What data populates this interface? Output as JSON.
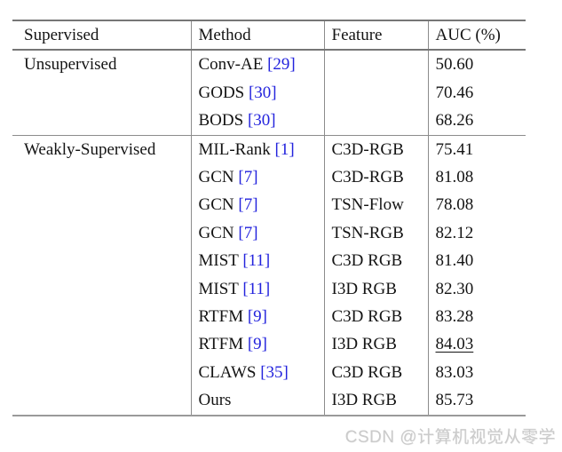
{
  "table": {
    "headers": [
      "Supervised",
      "Method",
      "Feature",
      "AUC (%)"
    ],
    "sections": [
      {
        "supervision": "Unsupervised",
        "rows": [
          {
            "method": "Conv-AE",
            "cite": "[29]",
            "feature": "",
            "auc": "50.60"
          },
          {
            "method": "GODS",
            "cite": "[30]",
            "feature": "",
            "auc": "70.46"
          },
          {
            "method": "BODS",
            "cite": "[30]",
            "feature": "",
            "auc": "68.26"
          }
        ]
      },
      {
        "supervision": "Weakly-Supervised",
        "rows": [
          {
            "method": "MIL-Rank",
            "cite": "[1]",
            "feature": "C3D-RGB",
            "auc": "75.41"
          },
          {
            "method": "GCN",
            "cite": "[7]",
            "feature": "C3D-RGB",
            "auc": "81.08"
          },
          {
            "method": "GCN",
            "cite": "[7]",
            "feature": "TSN-Flow",
            "auc": "78.08"
          },
          {
            "method": "GCN",
            "cite": "[7]",
            "feature": "TSN-RGB",
            "auc": "82.12"
          },
          {
            "method": "MIST",
            "cite": "[11]",
            "feature": "C3D RGB",
            "auc": "81.40"
          },
          {
            "method": "MIST",
            "cite": "[11]",
            "feature": "I3D RGB",
            "auc": "82.30"
          },
          {
            "method": "RTFM",
            "cite": "[9]",
            "feature": "C3D RGB",
            "auc": "83.28"
          },
          {
            "method": "RTFM",
            "cite": "[9]",
            "feature": "I3D RGB",
            "auc": "84.03",
            "underline": true
          },
          {
            "method": "CLAWS",
            "cite": "[35]",
            "feature": "C3D RGB",
            "auc": "83.03"
          },
          {
            "method": "Ours",
            "cite": "",
            "feature": "I3D RGB",
            "auc": "85.73",
            "bold": true
          }
        ]
      }
    ]
  },
  "watermark": {
    "text": "CSDN @计算机视觉从零学"
  },
  "colors": {
    "citation_blue": "#2323dd",
    "rule_gray": "#8c8c8c",
    "watermark_gray": "#cbcbcb",
    "text_black": "#141414"
  }
}
